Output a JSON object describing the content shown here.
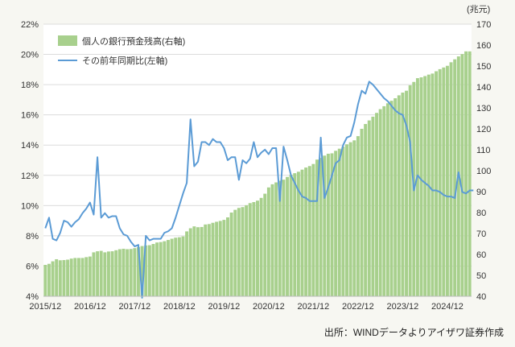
{
  "chart_data": {
    "type": "bar+line",
    "unit_right": "(兆元)",
    "source": "出所：WINDデータよりアイザワ証券作成",
    "x_tick_labels": [
      "2015/12",
      "2016/12",
      "2017/12",
      "2018/12",
      "2019/12",
      "2020/12",
      "2021/12",
      "2022/12",
      "2023/12",
      "2024/12"
    ],
    "left_axis": {
      "ticks": [
        "4%",
        "6%",
        "8%",
        "10%",
        "12%",
        "14%",
        "16%",
        "18%",
        "20%",
        "22%"
      ],
      "range": [
        4,
        22
      ]
    },
    "right_axis": {
      "ticks": [
        "40",
        "50",
        "60",
        "70",
        "80",
        "90",
        "100",
        "110",
        "120",
        "130",
        "140",
        "150",
        "160",
        "170"
      ],
      "range": [
        40,
        170
      ]
    },
    "legend": [
      {
        "name": "個人の銀行預金残高(右軸)",
        "type": "bar",
        "color": "#a8d08d"
      },
      {
        "name": "その前年同期比(左軸)",
        "type": "line",
        "color": "#5b9bd5"
      }
    ],
    "series": [
      {
        "name": "個人の銀行預金残高(右軸)",
        "axis": "right",
        "start": "2015/12",
        "values": [
          55.0,
          55.5,
          56.7,
          57.7,
          57.2,
          57.3,
          57.5,
          58.0,
          58.3,
          58.3,
          58.3,
          58.7,
          59.0,
          61.0,
          61.5,
          61.7,
          61.0,
          61.4,
          61.5,
          62.0,
          62.5,
          62.7,
          62.5,
          62.6,
          63.0,
          63.5,
          64.0,
          64.3,
          64.4,
          65.0,
          65.7,
          65.9,
          66.3,
          66.9,
          67.5,
          68.0,
          68.2,
          68.6,
          71.0,
          72.5,
          73.4,
          73.0,
          73.1,
          74.3,
          74.5,
          75.1,
          75.6,
          76.0,
          76.5,
          77.7,
          80.0,
          81.3,
          82.2,
          82.6,
          83.5,
          84.5,
          85.0,
          85.7,
          87.0,
          89.0,
          92.0,
          93.5,
          94.4,
          95.2,
          95.7,
          97.0,
          98.0,
          98.8,
          99.5,
          100.5,
          101.5,
          102.2,
          103.2,
          105.3,
          106.1,
          107.2,
          108.1,
          108.3,
          109.5,
          110.5,
          111.5,
          112.6,
          113.6,
          114.5,
          116.5,
          120.0,
          122.3,
          124.0,
          125.8,
          127.6,
          129.4,
          130.8,
          132.2,
          133.4,
          134.6,
          136.0,
          137.3,
          138.2,
          140.8,
          142.4,
          144.2,
          144.6,
          145.2,
          145.9,
          146.4,
          147.5,
          148.5,
          149.3,
          150.1,
          151.8,
          153.2,
          154.6,
          155.7,
          157.0,
          157.0
        ]
      },
      {
        "name": "その前年同期比(左軸)",
        "axis": "left",
        "start": "2015/12",
        "values": [
          8.5,
          9.2,
          7.8,
          7.7,
          8.2,
          9.0,
          8.9,
          8.6,
          8.9,
          9.1,
          9.5,
          9.8,
          10.2,
          9.4,
          13.2,
          9.2,
          9.5,
          9.2,
          9.3,
          9.3,
          8.5,
          8.1,
          8.0,
          7.6,
          7.3,
          7.4,
          3.9,
          8.0,
          7.7,
          7.8,
          7.8,
          7.8,
          8.2,
          8.3,
          8.5,
          9.2,
          10.0,
          10.8,
          11.5,
          15.7,
          12.6,
          12.9,
          14.2,
          14.2,
          14.0,
          14.4,
          14.2,
          14.2,
          13.8,
          13.0,
          13.2,
          13.2,
          11.7,
          13.0,
          12.8,
          13.1,
          14.2,
          13.2,
          13.5,
          13.7,
          13.4,
          13.8,
          13.8,
          10.3,
          13.9,
          13.0,
          12.0,
          11.5,
          11.0,
          10.6,
          10.5,
          10.3,
          10.3,
          10.3,
          14.5,
          10.5,
          11.2,
          12.0,
          12.8,
          13.0,
          14.0,
          14.5,
          14.6,
          15.5,
          16.7,
          17.6,
          17.4,
          18.2,
          18.0,
          17.7,
          17.4,
          17.1,
          16.9,
          16.6,
          16.3,
          16.1,
          16.0,
          15.3,
          14.2,
          11.0,
          12.0,
          11.7,
          11.5,
          11.3,
          11.0,
          11.0,
          10.9,
          10.7,
          10.6,
          10.6,
          10.5,
          12.2,
          10.9,
          10.8,
          11.0,
          11.0
        ]
      }
    ]
  }
}
